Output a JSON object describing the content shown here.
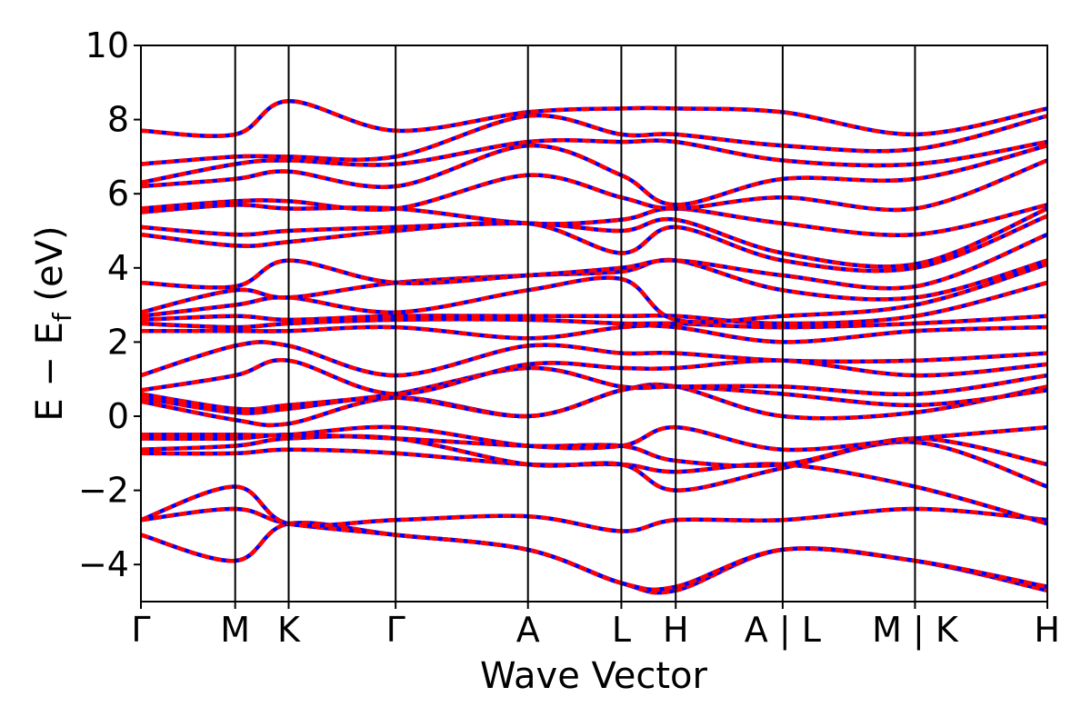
{
  "chart_data": {
    "type": "line",
    "xlabel": "Wave Vector",
    "ylabel": "E − E",
    "ylabel_sub": "f",
    "ylabel_unit": " (eV)",
    "ylim": [
      -5,
      10
    ],
    "y_ticks": [
      10,
      8,
      6,
      4,
      2,
      0,
      -2,
      -4
    ],
    "y_tick_labels": [
      "10",
      "8",
      "6",
      "4",
      "2",
      "0",
      "−2",
      "−4"
    ],
    "x_ticks": [
      {
        "label": "Γ",
        "k": 0.0
      },
      {
        "label": "M",
        "k": 0.104
      },
      {
        "label": "K",
        "k": 0.163
      },
      {
        "label": "Γ",
        "k": 0.281
      },
      {
        "label": "A",
        "k": 0.427
      },
      {
        "label": "L",
        "k": 0.53
      },
      {
        "label": "H",
        "k": 0.59
      },
      {
        "label": "A | L",
        "k": 0.708
      },
      {
        "label": "M | K",
        "k": 0.854
      },
      {
        "label": "H",
        "k": 1.0
      }
    ],
    "xlim": [
      0,
      1
    ],
    "series_colors": [
      "#ff0000",
      "#0000ff"
    ],
    "band_samples_k": [
      0.0,
      0.104,
      0.163,
      0.281,
      0.427,
      0.53,
      0.59,
      0.708,
      0.854,
      1.0
    ],
    "bands": [
      [
        -3.2,
        -3.9,
        -2.9,
        -3.2,
        -3.6,
        -4.5,
        -4.7,
        -3.6,
        -3.9,
        -4.7
      ],
      [
        -2.8,
        -2.5,
        -2.9,
        -3.2,
        -3.6,
        -4.5,
        -4.6,
        -3.6,
        -3.9,
        -4.6
      ],
      [
        -2.8,
        -1.9,
        -2.9,
        -2.8,
        -2.7,
        -3.1,
        -2.8,
        -2.8,
        -2.5,
        -2.8
      ],
      [
        -1.0,
        -1.0,
        -0.9,
        -1.0,
        -1.3,
        -1.3,
        -1.5,
        -1.3,
        -1.9,
        -2.9
      ],
      [
        -0.9,
        -0.8,
        -0.6,
        -0.6,
        -1.3,
        -1.3,
        -2.0,
        -1.4,
        -0.7,
        -1.9
      ],
      [
        -0.6,
        -0.6,
        -0.5,
        -0.6,
        -0.8,
        -0.8,
        -1.2,
        -1.3,
        -0.6,
        -1.3
      ],
      [
        -0.5,
        -0.5,
        -0.5,
        -0.3,
        -0.8,
        -0.8,
        -0.3,
        -0.9,
        -0.6,
        -0.3
      ],
      [
        0.4,
        -0.1,
        -0.2,
        0.5,
        0.0,
        0.7,
        0.8,
        0.0,
        0.1,
        0.8
      ],
      [
        0.5,
        0.1,
        0.2,
        0.5,
        0.0,
        0.7,
        0.8,
        0.6,
        0.3,
        0.7
      ],
      [
        0.6,
        0.2,
        0.3,
        0.6,
        1.3,
        0.8,
        0.8,
        0.8,
        0.6,
        1.1
      ],
      [
        0.7,
        1.1,
        1.5,
        0.6,
        1.4,
        1.3,
        1.3,
        1.5,
        1.1,
        1.4
      ],
      [
        1.1,
        1.9,
        1.9,
        1.1,
        1.9,
        1.7,
        1.7,
        1.5,
        1.5,
        1.7
      ],
      [
        2.3,
        2.3,
        2.3,
        2.4,
        2.1,
        2.4,
        2.4,
        2.0,
        2.3,
        2.4
      ],
      [
        2.5,
        2.4,
        2.5,
        2.6,
        2.6,
        2.5,
        2.5,
        2.4,
        2.5,
        2.7
      ],
      [
        2.6,
        2.7,
        2.6,
        2.7,
        2.7,
        2.7,
        2.7,
        2.5,
        2.7,
        3.6
      ],
      [
        2.7,
        3.0,
        3.2,
        2.8,
        3.4,
        3.7,
        2.6,
        2.7,
        3.0,
        4.1
      ],
      [
        2.8,
        3.4,
        3.2,
        3.6,
        3.8,
        3.9,
        4.2,
        3.4,
        3.2,
        4.2
      ],
      [
        3.6,
        3.5,
        4.2,
        3.6,
        3.8,
        4.0,
        4.2,
        3.8,
        3.5,
        4.9
      ],
      [
        4.9,
        4.6,
        4.7,
        5.0,
        5.2,
        4.4,
        5.1,
        4.2,
        4.0,
        5.4
      ],
      [
        5.1,
        4.9,
        5.0,
        5.1,
        5.2,
        5.0,
        5.3,
        4.4,
        4.1,
        5.6
      ],
      [
        5.5,
        5.7,
        5.6,
        5.6,
        5.2,
        5.3,
        5.6,
        5.2,
        4.9,
        5.7
      ],
      [
        5.6,
        5.8,
        5.8,
        5.6,
        6.5,
        5.9,
        5.6,
        5.9,
        5.6,
        6.9
      ],
      [
        6.2,
        6.4,
        6.6,
        6.2,
        7.3,
        6.5,
        5.7,
        6.4,
        6.4,
        7.3
      ],
      [
        6.3,
        6.8,
        6.9,
        6.8,
        7.4,
        7.4,
        7.4,
        6.9,
        6.8,
        7.4
      ],
      [
        6.8,
        7.0,
        7.0,
        7.0,
        8.1,
        7.6,
        7.6,
        7.3,
        7.2,
        8.1
      ],
      [
        7.7,
        7.6,
        8.5,
        7.7,
        8.2,
        8.3,
        8.3,
        8.2,
        7.6,
        8.3
      ]
    ]
  }
}
